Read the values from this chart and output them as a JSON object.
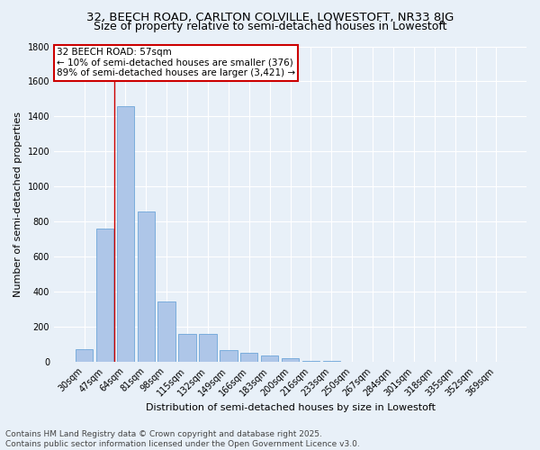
{
  "title1": "32, BEECH ROAD, CARLTON COLVILLE, LOWESTOFT, NR33 8JG",
  "title2": "Size of property relative to semi-detached houses in Lowestoft",
  "xlabel": "Distribution of semi-detached houses by size in Lowestoft",
  "ylabel": "Number of semi-detached properties",
  "footnote1": "Contains HM Land Registry data © Crown copyright and database right 2025.",
  "footnote2": "Contains public sector information licensed under the Open Government Licence v3.0.",
  "categories": [
    "30sqm",
    "47sqm",
    "64sqm",
    "81sqm",
    "98sqm",
    "115sqm",
    "132sqm",
    "149sqm",
    "166sqm",
    "183sqm",
    "200sqm",
    "216sqm",
    "233sqm",
    "250sqm",
    "267sqm",
    "284sqm",
    "301sqm",
    "318sqm",
    "335sqm",
    "352sqm",
    "369sqm"
  ],
  "values": [
    75,
    760,
    1460,
    860,
    345,
    160,
    160,
    70,
    50,
    35,
    20,
    8,
    5,
    3,
    2,
    2,
    1,
    1,
    1,
    1,
    1
  ],
  "bar_color": "#aec6e8",
  "bar_edge_color": "#5b9bd5",
  "annotation_text_line1": "32 BEECH ROAD: 57sqm",
  "annotation_text_line2": "← 10% of semi-detached houses are smaller (376)",
  "annotation_text_line3": "89% of semi-detached houses are larger (3,421) →",
  "annotation_box_color": "#ffffff",
  "annotation_border_color": "#cc0000",
  "vline_x_index": 1.45,
  "ylim": [
    0,
    1800
  ],
  "yticks": [
    0,
    200,
    400,
    600,
    800,
    1000,
    1200,
    1400,
    1600,
    1800
  ],
  "background_color": "#e8f0f8",
  "grid_color": "#ffffff",
  "title1_fontsize": 9.5,
  "title2_fontsize": 9,
  "axis_label_fontsize": 8,
  "tick_fontsize": 7,
  "annotation_fontsize": 7.5,
  "footnote_fontsize": 6.5
}
